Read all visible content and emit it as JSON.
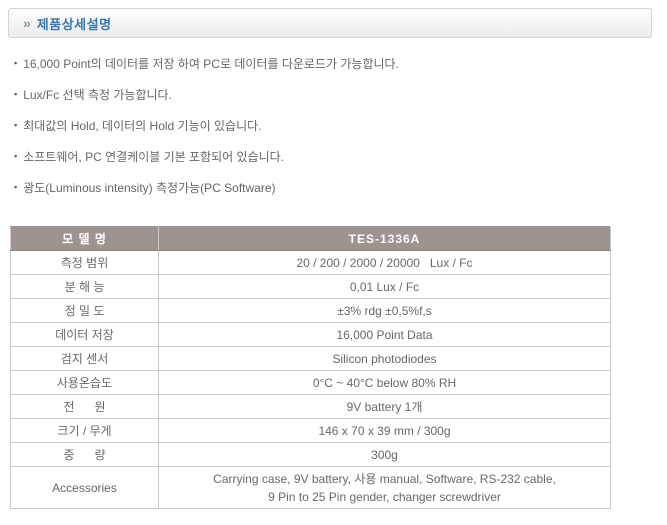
{
  "colors": {
    "title_blue": "#3878ad",
    "table_header_bg": "#9e948f",
    "table_header_text": "#ffffff",
    "body_text": "#666666",
    "table_border": "#c9c9c9"
  },
  "header": {
    "arrow_icon": "»",
    "title": "제품상세설명"
  },
  "bullets": [
    "16,000 Point의 데이터를 저장 하여 PC로 데이터를 다운로드가 가능합니다.",
    "Lux/Fc 선택 측정 가능합니다.",
    "최대값의 Hold, 데이터의 Hold 기능이 있습니다.",
    "소프트웨어, PC 연결케이블 기본 포함되어 있습니다.",
    "광도(Luminous intensity) 측정가능(PC Software)"
  ],
  "spec_table": {
    "header": {
      "label": "모 델 명",
      "value": "TES-1336A"
    },
    "rows": [
      {
        "label": "측정 범위",
        "value": "20 / 200 / 2000 / 20000   Lux / Fc"
      },
      {
        "label": "분 해 능",
        "value": "0,01 Lux / Fc"
      },
      {
        "label": "정 밀 도",
        "value": "±3% rdg ±0,5%f,s"
      },
      {
        "label": "데이터 저장",
        "value": "16,000 Point Data"
      },
      {
        "label": "검지 센서",
        "value": "Silicon photodiodes"
      },
      {
        "label": "사용온습도",
        "value": "0°C ~ 40°C below 80% RH"
      },
      {
        "label": "전      원",
        "value": "9V battery 1개"
      },
      {
        "label": "크기 / 무게",
        "value": "146 x 70 x 39 mm / 300g"
      },
      {
        "label": "중      량",
        "value": "300g"
      },
      {
        "label": "Accessories",
        "value": "Carrying case, 9V battery, 사용 manual, Software, RS-232 cable,\n9 Pin to 25 Pin gender, changer screwdriver"
      }
    ]
  }
}
